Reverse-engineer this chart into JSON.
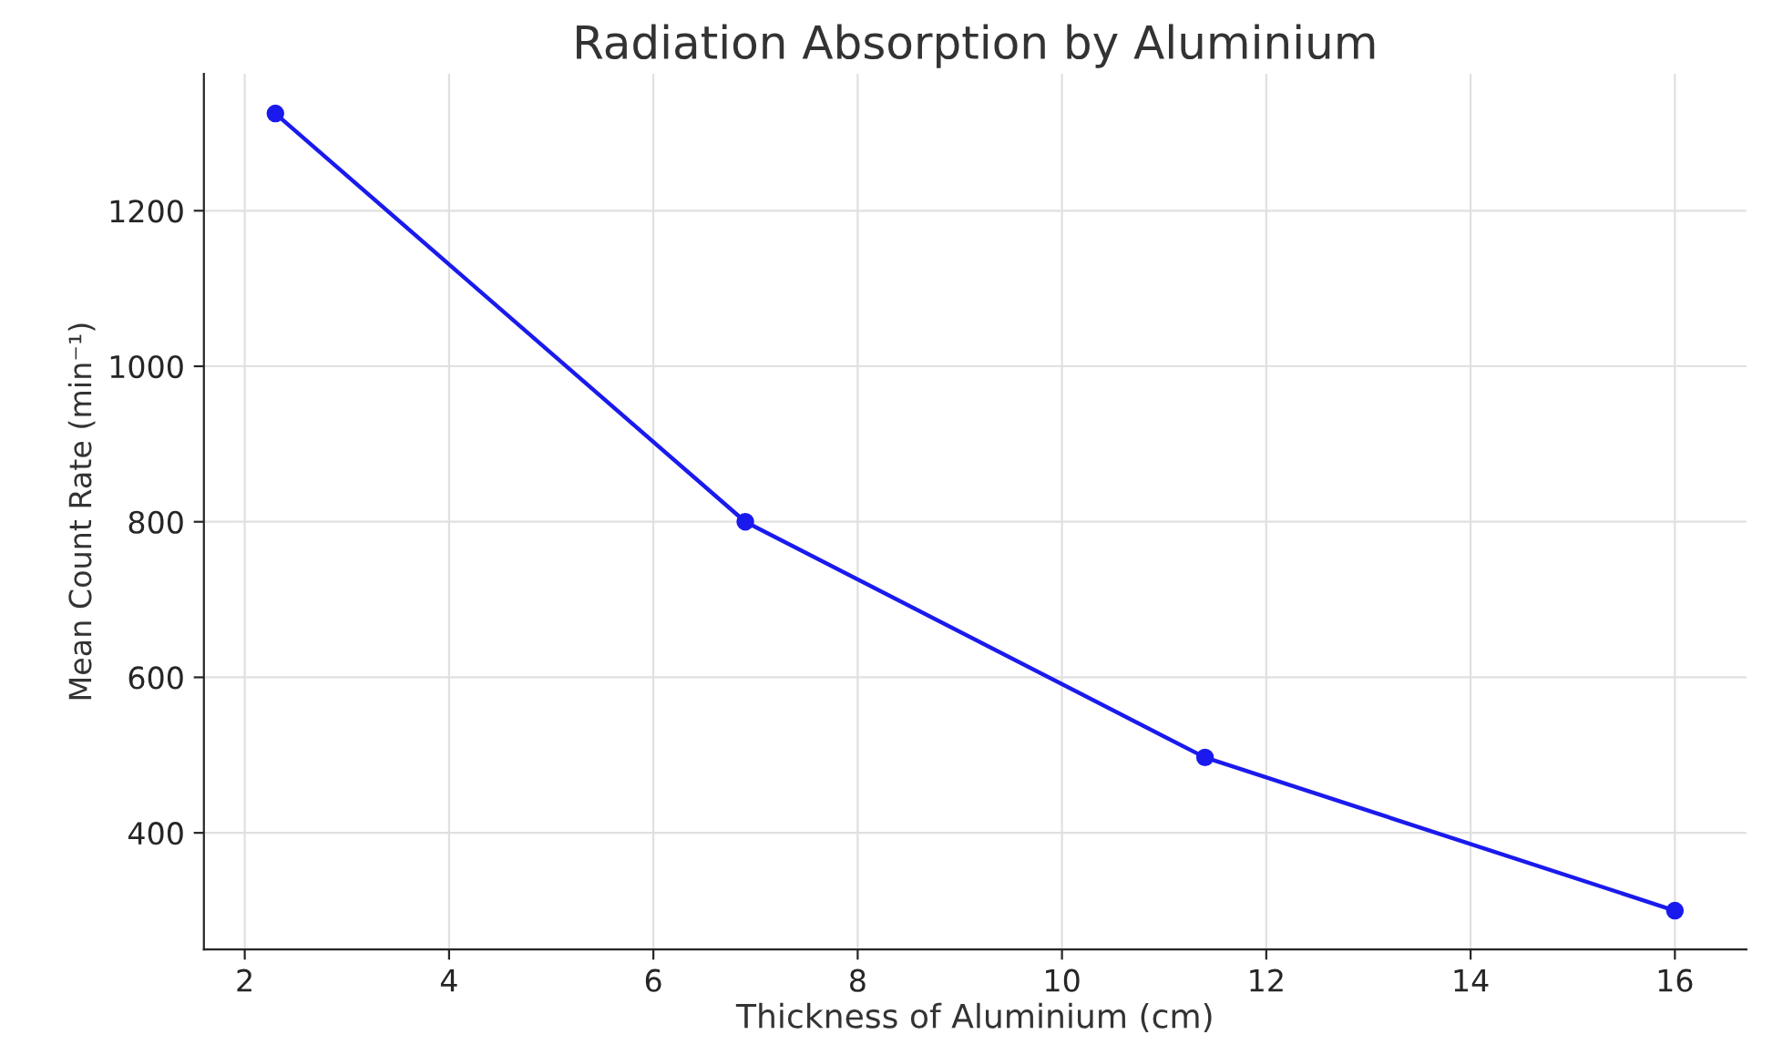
{
  "chart_data": {
    "type": "line",
    "title": "Radiation Absorption by Aluminium",
    "xlabel": "Thickness of Aluminium (cm)",
    "ylabel": "Mean Count Rate (min⁻¹)",
    "x": [
      2.3,
      6.9,
      11.4,
      16
    ],
    "series": [
      {
        "color": "#1a1aee",
        "values": [
          1325,
          800,
          497,
          300
        ]
      }
    ],
    "xlim": [
      1.6,
      16.7
    ],
    "xticks": [
      2,
      4,
      6,
      8,
      10,
      12,
      14,
      16
    ],
    "ylim": [
      250,
      1376
    ],
    "yticks": [
      400,
      600,
      800,
      1000,
      1200
    ],
    "grid": true,
    "marker": "circle",
    "line_style": "solid"
  }
}
